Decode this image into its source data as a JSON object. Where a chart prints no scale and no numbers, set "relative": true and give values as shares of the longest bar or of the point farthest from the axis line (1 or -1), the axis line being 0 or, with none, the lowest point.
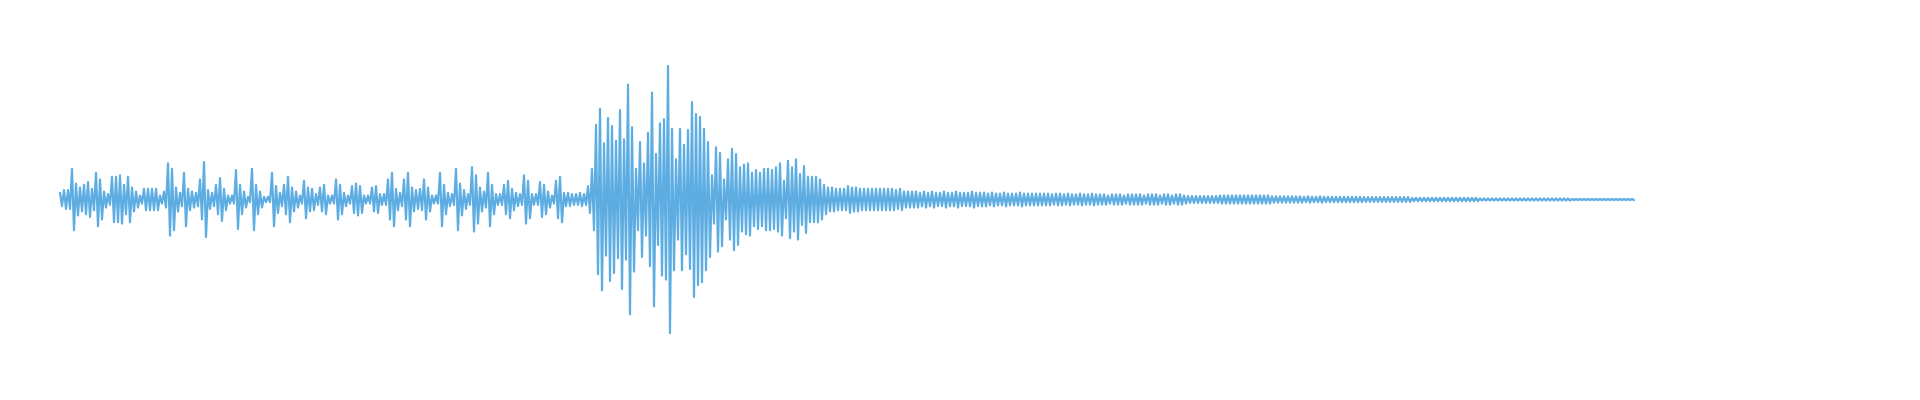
{
  "chart_data": {
    "type": "line",
    "relative": true,
    "color": "#5dade2",
    "categories": [
      null,
      null,
      null,
      null,
      null,
      null,
      null,
      null,
      null,
      null,
      null,
      null,
      null,
      null,
      null,
      null,
      null,
      null,
      null,
      null,
      null,
      null,
      null,
      null,
      null,
      null,
      null,
      null,
      null,
      null,
      null,
      null,
      null,
      null,
      null,
      null,
      null,
      null,
      null,
      null,
      null,
      null,
      null,
      null,
      null,
      null,
      null,
      null,
      null,
      null,
      null,
      null,
      null,
      null,
      null,
      null,
      null,
      null,
      null,
      null,
      null,
      null,
      null,
      null,
      null,
      null,
      null,
      null,
      null,
      null,
      null,
      null,
      null,
      null,
      null,
      null,
      null,
      null,
      null,
      null,
      null,
      null,
      null,
      null,
      null,
      null,
      null,
      null,
      null,
      null,
      null,
      null,
      null,
      null,
      null,
      null,
      null,
      null,
      null,
      null,
      null,
      null,
      null,
      null,
      null,
      null,
      null,
      null,
      null,
      null,
      null,
      null,
      null,
      null,
      null,
      null,
      null,
      null,
      null,
      null,
      null,
      null,
      null,
      null,
      null,
      null,
      null,
      null,
      null,
      null,
      null,
      null,
      null,
      null,
      null,
      null,
      null,
      null,
      null,
      null,
      null,
      null,
      null,
      null,
      null,
      null,
      null,
      null,
      null,
      null,
      null,
      null,
      null,
      null,
      null,
      null,
      null,
      null,
      null,
      null,
      null,
      null,
      null,
      null,
      null,
      null,
      null,
      null,
      null,
      null,
      null,
      null,
      null,
      null,
      null,
      null,
      null,
      null,
      null,
      null,
      null,
      null,
      null,
      null,
      null,
      null,
      null,
      null,
      null,
      null,
      null,
      null,
      null,
      null,
      null,
      null,
      null,
      null,
      null,
      null,
      null,
      null,
      null,
      null,
      null,
      null,
      null,
      null,
      null,
      null,
      null,
      null,
      null,
      null,
      null,
      null,
      null,
      null,
      null,
      null,
      null,
      null,
      null,
      null,
      null,
      null,
      null,
      null,
      null,
      null,
      null,
      null,
      null,
      null,
      null,
      null,
      null,
      null,
      null,
      null,
      null,
      null,
      null,
      null,
      null,
      null,
      null,
      null,
      null,
      null,
      null,
      null,
      null,
      null,
      null,
      null,
      null,
      null,
      null,
      null,
      null,
      null,
      null,
      null,
      null,
      null,
      null,
      null,
      null,
      null,
      null,
      null,
      null,
      null,
      null,
      null,
      null,
      null,
      null,
      null,
      null,
      null,
      null,
      null,
      null,
      null,
      null,
      null,
      null,
      null,
      null,
      null,
      null,
      null,
      null,
      null,
      null,
      null,
      null,
      null,
      null,
      null,
      null,
      null,
      null,
      null,
      null,
      null,
      null,
      null,
      null,
      null,
      null,
      null,
      null,
      null,
      null,
      null,
      null,
      null,
      null,
      null,
      null,
      null,
      null,
      null,
      null,
      null,
      null,
      null,
      null,
      null,
      null,
      null,
      null,
      null,
      null,
      null,
      null,
      null,
      null,
      null,
      null,
      null,
      null,
      null,
      null,
      null,
      null,
      null,
      null,
      null,
      null,
      null,
      null,
      null,
      null,
      null,
      null,
      null,
      null,
      null,
      null,
      null,
      null,
      null,
      null,
      null,
      null,
      null,
      null,
      null,
      null,
      null,
      null,
      null,
      null,
      null,
      null,
      null,
      null,
      null,
      null,
      null,
      null,
      null,
      null,
      null,
      null,
      null,
      null,
      null,
      null,
      null,
      null,
      null,
      null,
      null,
      null,
      null,
      null,
      null,
      null,
      null,
      null,
      null,
      null,
      null,
      null,
      null,
      null,
      null,
      null,
      null,
      null,
      null,
      null,
      null,
      null,
      null,
      null,
      null,
      null,
      null,
      null,
      null,
      null,
      null,
      null,
      null,
      null,
      null,
      null,
      null,
      null,
      null,
      null,
      null,
      null,
      null,
      null,
      null,
      null,
      null,
      null,
      null,
      null,
      null,
      null,
      null,
      null,
      null,
      null,
      null,
      null,
      null,
      null,
      null,
      null,
      null,
      null,
      null,
      null,
      null,
      null,
      null,
      null,
      null,
      null,
      null,
      null,
      null,
      null,
      null,
      null,
      null,
      null,
      null,
      null,
      null,
      null,
      null,
      null,
      null,
      null,
      null,
      null,
      null,
      null,
      null,
      null,
      null,
      null,
      null,
      null,
      null,
      null,
      null,
      null,
      null,
      null,
      null,
      null,
      null,
      null,
      null,
      null,
      null,
      null,
      null,
      null,
      null,
      null,
      null,
      null,
      null,
      null,
      null,
      null,
      null,
      null,
      null,
      null,
      null,
      null,
      null,
      null,
      null,
      null,
      null,
      null,
      null,
      null,
      null,
      null,
      null,
      null,
      null,
      null,
      null,
      null,
      null,
      null,
      null,
      null,
      null,
      null,
      null,
      null,
      null,
      null,
      null,
      null,
      null,
      null,
      null,
      null,
      null,
      null,
      null,
      null,
      null,
      null,
      null,
      null,
      null,
      null,
      null,
      null,
      null,
      null,
      null,
      null,
      null,
      null,
      null,
      null,
      null,
      null,
      null,
      null,
      null,
      null,
      null,
      null,
      null,
      null,
      null,
      null,
      null,
      null,
      null,
      null,
      null,
      null,
      null,
      null,
      null,
      null,
      null,
      null,
      null,
      null,
      null,
      null,
      null,
      null,
      null,
      null,
      null,
      null,
      null,
      null,
      null,
      null,
      null,
      null,
      null,
      null,
      null,
      null,
      null,
      null,
      null,
      null,
      null,
      null,
      null,
      null,
      null,
      null,
      null,
      null,
      null,
      null,
      null,
      null,
      null,
      null,
      null,
      null,
      null,
      null,
      null,
      null,
      null,
      null,
      null,
      null,
      null,
      null,
      null,
      null,
      null,
      null,
      null,
      null,
      null,
      null,
      null,
      null,
      null,
      null,
      null,
      null,
      null,
      null,
      null,
      null,
      null,
      null,
      null,
      null,
      null,
      null,
      null,
      null,
      null,
      null,
      null,
      null,
      null,
      null,
      null,
      null,
      null,
      null,
      null,
      null,
      null,
      null,
      null,
      null,
      null,
      null,
      null,
      null,
      null,
      null,
      null,
      null,
      null,
      null,
      null,
      null,
      null,
      null,
      null,
      null,
      null,
      null,
      null,
      null,
      null,
      null,
      null,
      null,
      null,
      null,
      null,
      null,
      null,
      null,
      null,
      null,
      null,
      null,
      null,
      null,
      null,
      null,
      null,
      null,
      null,
      null,
      null,
      null,
      null,
      null,
      null,
      null,
      null,
      null,
      null,
      null,
      null,
      null,
      null,
      null,
      null,
      null,
      null,
      null,
      null,
      null,
      null,
      null,
      null,
      null,
      null,
      null,
      null,
      null,
      null,
      null,
      null,
      null,
      null,
      null,
      null,
      null,
      null,
      null,
      null,
      null,
      null,
      null,
      null,
      null,
      null,
      null,
      null,
      null,
      null,
      null,
      null,
      null,
      null
    ],
    "values": [
      0.525,
      0.475,
      0.535,
      0.465,
      0.535,
      0.465,
      0.615,
      0.385,
      0.56,
      0.44,
      0.545,
      0.455,
      0.555,
      0.445,
      0.565,
      0.435,
      0.54,
      0.46,
      0.6,
      0.4,
      0.575,
      0.425,
      0.53,
      0.47,
      0.52,
      0.48,
      0.585,
      0.415,
      0.585,
      0.415,
      0.59,
      0.41,
      0.555,
      0.445,
      0.585,
      0.415,
      0.545,
      0.455,
      0.53,
      0.47,
      0.515,
      0.485,
      0.54,
      0.46,
      0.54,
      0.46,
      0.54,
      0.46,
      0.54,
      0.46,
      0.515,
      0.485,
      0.53,
      0.47,
      0.635,
      0.365,
      0.615,
      0.385,
      0.545,
      0.455,
      0.525,
      0.475,
      0.6,
      0.4,
      0.54,
      0.46,
      0.53,
      0.47,
      0.525,
      0.475,
      0.575,
      0.425,
      0.64,
      0.36,
      0.535,
      0.465,
      0.525,
      0.475,
      0.555,
      0.445,
      0.58,
      0.42,
      0.54,
      0.46,
      0.515,
      0.485,
      0.515,
      0.485,
      0.61,
      0.39,
      0.555,
      0.445,
      0.53,
      0.47,
      0.51,
      0.49,
      0.615,
      0.385,
      0.555,
      0.445,
      0.53,
      0.47,
      0.51,
      0.49,
      0.51,
      0.49,
      0.6,
      0.4,
      0.55,
      0.45,
      0.525,
      0.475,
      0.555,
      0.445,
      0.585,
      0.415,
      0.545,
      0.455,
      0.53,
      0.47,
      0.515,
      0.485,
      0.57,
      0.43,
      0.545,
      0.455,
      0.54,
      0.46,
      0.52,
      0.48,
      0.545,
      0.455,
      0.555,
      0.445,
      0.515,
      0.485,
      0.515,
      0.485,
      0.575,
      0.425,
      0.555,
      0.445,
      0.525,
      0.475,
      0.515,
      0.485,
      0.55,
      0.45,
      0.56,
      0.44,
      0.55,
      0.45,
      0.515,
      0.485,
      0.515,
      0.485,
      0.545,
      0.455,
      0.55,
      0.45,
      0.52,
      0.48,
      0.52,
      0.48,
      0.575,
      0.425,
      0.6,
      0.4,
      0.54,
      0.46,
      0.525,
      0.475,
      0.575,
      0.425,
      0.6,
      0.4,
      0.545,
      0.455,
      0.535,
      0.465,
      0.54,
      0.46,
      0.575,
      0.425,
      0.545,
      0.455,
      0.515,
      0.485,
      0.515,
      0.485,
      0.6,
      0.4,
      0.555,
      0.445,
      0.525,
      0.475,
      0.52,
      0.48,
      0.615,
      0.385,
      0.56,
      0.44,
      0.535,
      0.465,
      0.52,
      0.48,
      0.62,
      0.38,
      0.59,
      0.41,
      0.545,
      0.455,
      0.53,
      0.47,
      0.6,
      0.4,
      0.555,
      0.445,
      0.52,
      0.48,
      0.52,
      0.48,
      0.555,
      0.445,
      0.57,
      0.43,
      0.54,
      0.46,
      0.525,
      0.475,
      0.52,
      0.48,
      0.59,
      0.41,
      0.57,
      0.43,
      0.52,
      0.48,
      0.52,
      0.48,
      0.565,
      0.435,
      0.555,
      0.445,
      0.53,
      0.47,
      0.515,
      0.485,
      0.57,
      0.43,
      0.585,
      0.415,
      0.525,
      0.475,
      0.525,
      0.475,
      0.52,
      0.48,
      0.52,
      0.48,
      0.525,
      0.475,
      0.52,
      0.48,
      0.55,
      0.45,
      0.615,
      0.385,
      0.78,
      0.22,
      0.84,
      0.16,
      0.71,
      0.29,
      0.805,
      0.195,
      0.775,
      0.225,
      0.72,
      0.28,
      0.835,
      0.165,
      0.725,
      0.275,
      0.93,
      0.07,
      0.77,
      0.23,
      0.615,
      0.385,
      0.715,
      0.285,
      0.635,
      0.365,
      0.75,
      0.25,
      0.9,
      0.1,
      0.67,
      0.33,
      0.785,
      0.215,
      0.8,
      0.2,
      1,
      0,
      0.765,
      0.235,
      0.65,
      0.35,
      0.765,
      0.235,
      0.705,
      0.295,
      0.76,
      0.24,
      0.865,
      0.135,
      0.82,
      0.18,
      0.81,
      0.19,
      0.765,
      0.235,
      0.715,
      0.285,
      0.59,
      0.41,
      0.695,
      0.305,
      0.675,
      0.325,
      0.575,
      0.425,
      0.65,
      0.35,
      0.69,
      0.31,
      0.67,
      0.33,
      0.62,
      0.38,
      0.63,
      0.37,
      0.635,
      0.365,
      0.6,
      0.4,
      0.61,
      0.39,
      0.6,
      0.4,
      0.615,
      0.385,
      0.615,
      0.385,
      0.61,
      0.39,
      0.62,
      0.38,
      0.635,
      0.365,
      0.57,
      0.43,
      0.645,
      0.355,
      0.62,
      0.38,
      0.65,
      0.35,
      0.595,
      0.405,
      0.625,
      0.375,
      0.585,
      0.415,
      0.585,
      0.415,
      0.585,
      0.415,
      0.575,
      0.425,
      0.555,
      0.445,
      0.545,
      0.455,
      0.545,
      0.455,
      0.54,
      0.46,
      0.54,
      0.46,
      0.54,
      0.46,
      0.55,
      0.45,
      0.545,
      0.455,
      0.545,
      0.455,
      0.54,
      0.46,
      0.54,
      0.46,
      0.54,
      0.46,
      0.54,
      0.46,
      0.54,
      0.46,
      0.54,
      0.46,
      0.54,
      0.46,
      0.54,
      0.46,
      0.54,
      0.46,
      0.535,
      0.465,
      0.54,
      0.46,
      0.53,
      0.47,
      0.53,
      0.47,
      0.53,
      0.47,
      0.53,
      0.47,
      0.525,
      0.475,
      0.53,
      0.47,
      0.525,
      0.475,
      0.53,
      0.47,
      0.525,
      0.475,
      0.525,
      0.475,
      0.53,
      0.47,
      0.525,
      0.475,
      0.525,
      0.475,
      0.53,
      0.47,
      0.525,
      0.475,
      0.525,
      0.475,
      0.525,
      0.475,
      0.53,
      0.47,
      0.525,
      0.475,
      0.526,
      0.474,
      0.526,
      0.474,
      0.522,
      0.478,
      0.526,
      0.474,
      0.522,
      0.478,
      0.522,
      0.478,
      0.526,
      0.474,
      0.522,
      0.478,
      0.522,
      0.478,
      0.522,
      0.478,
      0.526,
      0.474,
      0.522,
      0.478,
      0.522,
      0.478,
      0.522,
      0.478,
      0.522,
      0.478,
      0.522,
      0.478,
      0.522,
      0.478,
      0.522,
      0.478,
      0.519,
      0.481,
      0.522,
      0.478,
      0.522,
      0.478,
      0.519,
      0.481,
      0.522,
      0.478,
      0.519,
      0.481,
      0.519,
      0.481,
      0.522,
      0.478,
      0.519,
      0.481,
      0.519,
      0.481,
      0.522,
      0.478,
      0.519,
      0.481,
      0.519,
      0.481,
      0.519,
      0.481,
      0.515,
      0.485,
      0.519,
      0.481,
      0.519,
      0.481,
      0.519,
      0.481,
      0.515,
      0.485,
      0.519,
      0.481,
      0.519,
      0.481,
      0.519,
      0.481,
      0.519,
      0.481,
      0.515,
      0.485,
      0.519,
      0.481,
      0.519,
      0.481,
      0.519,
      0.481,
      0.515,
      0.485,
      0.519,
      0.481,
      0.519,
      0.481,
      0.515,
      0.485,
      0.519,
      0.481,
      0.519,
      0.481,
      0.515,
      0.485,
      0.513,
      0.487,
      0.513,
      0.487,
      0.513,
      0.487,
      0.513,
      0.487,
      0.513,
      0.487,
      0.513,
      0.487,
      0.513,
      0.487,
      0.513,
      0.487,
      0.515,
      0.485,
      0.515,
      0.485,
      0.515,
      0.485,
      0.515,
      0.485,
      0.515,
      0.485,
      0.515,
      0.485,
      0.515,
      0.485,
      0.515,
      0.485,
      0.515,
      0.485,
      0.515,
      0.485,
      0.515,
      0.485,
      0.515,
      0.485,
      0.515,
      0.485,
      0.512,
      0.488,
      0.512,
      0.488,
      0.512,
      0.488,
      0.512,
      0.488,
      0.512,
      0.488,
      0.512,
      0.488,
      0.512,
      0.488,
      0.512,
      0.488,
      0.51,
      0.49,
      0.512,
      0.488,
      0.51,
      0.49,
      0.51,
      0.49,
      0.512,
      0.488,
      0.51,
      0.49,
      0.51,
      0.49,
      0.51,
      0.49,
      0.51,
      0.49,
      0.51,
      0.49,
      0.51,
      0.49,
      0.51,
      0.49,
      0.51,
      0.49,
      0.51,
      0.49,
      0.51,
      0.49,
      0.509,
      0.491,
      0.509,
      0.491,
      0.509,
      0.491,
      0.509,
      0.491,
      0.509,
      0.491,
      0.509,
      0.491,
      0.509,
      0.491,
      0.509,
      0.491,
      0.509,
      0.491,
      0.509,
      0.491,
      0.509,
      0.491,
      0.509,
      0.491,
      0.506,
      0.494,
      0.506,
      0.494,
      0.506,
      0.494,
      0.506,
      0.494,
      0.506,
      0.494,
      0.506,
      0.494,
      0.506,
      0.494,
      0.506,
      0.494,
      0.506,
      0.494,
      0.506,
      0.494,
      0.506,
      0.494,
      0.506,
      0.494,
      0.506,
      0.494,
      0.506,
      0.494,
      0.506,
      0.494,
      0.506,
      0.494,
      0.506,
      0.494,
      0.504,
      0.496,
      0.504,
      0.496,
      0.504,
      0.496,
      0.504,
      0.496,
      0.504,
      0.496,
      0.504,
      0.496,
      0.504,
      0.496,
      0.504,
      0.496,
      0.504,
      0.496,
      0.504,
      0.496,
      0.504,
      0.496,
      0.504,
      0.496,
      0.504,
      0.496,
      0.504,
      0.496,
      0.504,
      0.496,
      0.504,
      0.496,
      0.504,
      0.496,
      0.504,
      0.496,
      0.504,
      0.496,
      0.504,
      0.496,
      0.504,
      0.496,
      0.504,
      0.496,
      0.504,
      0.496,
      0.502,
      0.498,
      0.502,
      0.498,
      0.502,
      0.498,
      0.502,
      0.498,
      0.502,
      0.498,
      0.502,
      0.498,
      0.502,
      0.498,
      0.502,
      0.498,
      0.502,
      0.498,
      0.502,
      0.498,
      0.502,
      0.498,
      0.502,
      0.498,
      0.502,
      0.498,
      0.502,
      0.498,
      0.502,
      0.498,
      0.502,
      0.498
    ]
  }
}
